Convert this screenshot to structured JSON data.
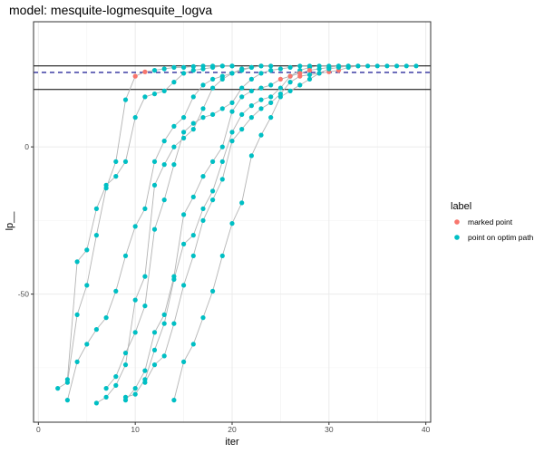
{
  "chart_data": {
    "type": "scatter",
    "title": "model: mesquite-logmesquite_logva",
    "xlabel": "iter",
    "ylabel": "lp__",
    "xlim": [
      -0.5,
      40.5
    ],
    "ylim": [
      -93.5,
      42.5
    ],
    "x_ticks": [
      0,
      10,
      20,
      30,
      40
    ],
    "y_ticks": [
      0,
      -50
    ],
    "grid": true,
    "hlines": [
      {
        "y": 27.5,
        "style": "solid",
        "color": "#000000"
      },
      {
        "y": 25.3,
        "style": "dashed",
        "color": "#00008b"
      },
      {
        "y": 19.5,
        "style": "solid",
        "color": "#000000"
      }
    ],
    "legend": {
      "title": "label",
      "position": "right",
      "entries": [
        {
          "label": "marked point",
          "color": "#F8766D"
        },
        {
          "label": "point on optim path",
          "color": "#00BFC4"
        }
      ]
    },
    "series": [
      {
        "points": [
          [
            2,
            -82
          ],
          [
            3,
            -80
          ],
          [
            4,
            -57
          ],
          [
            5,
            -47
          ],
          [
            6,
            -30
          ],
          [
            7,
            -14
          ],
          [
            8,
            -5
          ],
          [
            9,
            16
          ],
          [
            10,
            24
          ],
          [
            11,
            25.5
          ],
          [
            12,
            26
          ],
          [
            13,
            26.5
          ],
          [
            14,
            27
          ],
          [
            15,
            27
          ],
          [
            16,
            27.3
          ],
          [
            17,
            27.5
          ],
          [
            18,
            27.5
          ],
          [
            19,
            27.5
          ],
          [
            20,
            27.5
          ]
        ],
        "colors": [
          "c",
          "c",
          "c",
          "c",
          "c",
          "c",
          "c",
          "c",
          "m",
          "m",
          "c",
          "c",
          "c",
          "c",
          "c",
          "c",
          "c",
          "c",
          "c"
        ]
      },
      {
        "points": [
          [
            3,
            -86
          ],
          [
            4,
            -73
          ],
          [
            5,
            -67
          ],
          [
            6,
            -62
          ],
          [
            7,
            -58
          ],
          [
            8,
            -49
          ],
          [
            9,
            -37
          ],
          [
            10,
            -27
          ],
          [
            11,
            -21
          ],
          [
            12,
            -5
          ],
          [
            13,
            2
          ],
          [
            14,
            7
          ],
          [
            15,
            10
          ],
          [
            16,
            17
          ],
          [
            17,
            21
          ],
          [
            18,
            23
          ],
          [
            19,
            24
          ],
          [
            20,
            25
          ],
          [
            21,
            26
          ],
          [
            22,
            27
          ],
          [
            23,
            27.5
          ],
          [
            24,
            27.5
          ]
        ],
        "colors": [
          "c",
          "c",
          "c",
          "c",
          "c",
          "c",
          "c",
          "c",
          "c",
          "c",
          "c",
          "c",
          "c",
          "c",
          "c",
          "c",
          "c",
          "c",
          "c",
          "c",
          "c",
          "c"
        ]
      },
      {
        "points": [
          [
            3,
            -79
          ],
          [
            4,
            -39
          ],
          [
            5,
            -35
          ],
          [
            6,
            -21
          ],
          [
            7,
            -13
          ],
          [
            8,
            -10
          ],
          [
            9,
            -5
          ],
          [
            10,
            10
          ],
          [
            11,
            17
          ],
          [
            12,
            18
          ],
          [
            13,
            19
          ],
          [
            14,
            22
          ],
          [
            15,
            25
          ],
          [
            16,
            26
          ],
          [
            17,
            26.5
          ],
          [
            18,
            27
          ],
          [
            19,
            27.5
          ],
          [
            20,
            27.5
          ]
        ],
        "colors": [
          "c",
          "c",
          "c",
          "c",
          "c",
          "c",
          "c",
          "c",
          "c",
          "c",
          "c",
          "c",
          "c",
          "c",
          "c",
          "c",
          "c",
          "c"
        ]
      },
      {
        "points": [
          [
            6,
            -87
          ],
          [
            7,
            -85
          ],
          [
            8,
            -81
          ],
          [
            9,
            -74
          ],
          [
            10,
            -52
          ],
          [
            11,
            -44
          ],
          [
            12,
            -13
          ],
          [
            13,
            -6
          ],
          [
            14,
            0
          ],
          [
            15,
            3
          ],
          [
            16,
            6
          ],
          [
            17,
            13
          ],
          [
            18,
            20
          ],
          [
            19,
            23
          ],
          [
            20,
            25
          ],
          [
            21,
            26.5
          ],
          [
            22,
            27
          ],
          [
            23,
            27.5
          ]
        ],
        "colors": [
          "c",
          "c",
          "c",
          "c",
          "c",
          "c",
          "c",
          "c",
          "c",
          "c",
          "c",
          "c",
          "c",
          "c",
          "c",
          "c",
          "c",
          "c"
        ]
      },
      {
        "points": [
          [
            7,
            -82
          ],
          [
            8,
            -78
          ],
          [
            9,
            -70
          ],
          [
            10,
            -63
          ],
          [
            11,
            -54
          ],
          [
            12,
            -28
          ],
          [
            13,
            -18
          ],
          [
            14,
            -6
          ],
          [
            15,
            5
          ],
          [
            16,
            8
          ],
          [
            17,
            10
          ],
          [
            18,
            11
          ],
          [
            19,
            13
          ],
          [
            20,
            15
          ],
          [
            21,
            20
          ],
          [
            22,
            23
          ],
          [
            23,
            25
          ],
          [
            24,
            26
          ],
          [
            25,
            26.5
          ],
          [
            26,
            27
          ],
          [
            27,
            27.5
          ],
          [
            28,
            27.5
          ]
        ],
        "colors": [
          "c",
          "c",
          "c",
          "c",
          "c",
          "c",
          "c",
          "c",
          "c",
          "c",
          "c",
          "c",
          "c",
          "c",
          "c",
          "c",
          "c",
          "c",
          "c",
          "c",
          "c",
          "c"
        ]
      },
      {
        "points": [
          [
            9,
            -85
          ],
          [
            10,
            -84
          ],
          [
            11,
            -79
          ],
          [
            12,
            -69
          ],
          [
            13,
            -60
          ],
          [
            14,
            -45
          ],
          [
            15,
            -33
          ],
          [
            16,
            -30
          ],
          [
            17,
            -21
          ],
          [
            18,
            -15
          ],
          [
            19,
            -5
          ],
          [
            20,
            5
          ],
          [
            21,
            11
          ],
          [
            22,
            14
          ],
          [
            23,
            16
          ],
          [
            24,
            17
          ],
          [
            25,
            20
          ],
          [
            26,
            24
          ],
          [
            27,
            26
          ],
          [
            28,
            27
          ],
          [
            29,
            27.5
          ],
          [
            30,
            27.5
          ],
          [
            31,
            27.5
          ]
        ],
        "colors": [
          "c",
          "c",
          "c",
          "c",
          "c",
          "c",
          "c",
          "c",
          "c",
          "c",
          "c",
          "c",
          "c",
          "c",
          "c",
          "c",
          "c",
          "c",
          "c",
          "c",
          "c",
          "c",
          "c"
        ]
      },
      {
        "points": [
          [
            9,
            -86
          ],
          [
            10,
            -82
          ],
          [
            11,
            -76
          ],
          [
            12,
            -63
          ],
          [
            13,
            -57
          ],
          [
            14,
            -44
          ],
          [
            15,
            -23
          ],
          [
            16,
            -17
          ],
          [
            17,
            -10
          ],
          [
            18,
            -5
          ],
          [
            19,
            0
          ],
          [
            20,
            12
          ],
          [
            21,
            17
          ],
          [
            22,
            19
          ],
          [
            23,
            20
          ],
          [
            24,
            21
          ],
          [
            25,
            23
          ],
          [
            26,
            24
          ],
          [
            27,
            25
          ],
          [
            28,
            26
          ],
          [
            29,
            26.5
          ],
          [
            30,
            27
          ],
          [
            31,
            27.5
          ],
          [
            32,
            27.5
          ]
        ],
        "colors": [
          "c",
          "c",
          "c",
          "c",
          "c",
          "c",
          "c",
          "c",
          "c",
          "c",
          "c",
          "c",
          "c",
          "c",
          "c",
          "c",
          "m",
          "m",
          "m",
          "m",
          "c",
          "c",
          "c",
          "c"
        ]
      },
      {
        "points": [
          [
            11,
            -80
          ],
          [
            12,
            -74
          ],
          [
            13,
            -71
          ],
          [
            14,
            -60
          ],
          [
            15,
            -47
          ],
          [
            16,
            -37
          ],
          [
            17,
            -25
          ],
          [
            18,
            -18
          ],
          [
            19,
            -11
          ],
          [
            20,
            2
          ],
          [
            21,
            6
          ],
          [
            22,
            10
          ],
          [
            23,
            13
          ],
          [
            24,
            15
          ],
          [
            25,
            18
          ],
          [
            26,
            22
          ],
          [
            27,
            24
          ],
          [
            28,
            24.5
          ],
          [
            29,
            25
          ],
          [
            30,
            25.5
          ],
          [
            31,
            26
          ],
          [
            32,
            27
          ],
          [
            33,
            27.5
          ]
        ],
        "colors": [
          "c",
          "c",
          "c",
          "c",
          "c",
          "c",
          "c",
          "c",
          "c",
          "c",
          "c",
          "c",
          "c",
          "c",
          "c",
          "c",
          "m",
          "c",
          "m",
          "m",
          "m",
          "c",
          "c"
        ]
      },
      {
        "points": [
          [
            14,
            -86
          ],
          [
            15,
            -73
          ],
          [
            16,
            -67
          ],
          [
            17,
            -58
          ],
          [
            18,
            -49
          ],
          [
            19,
            -37
          ],
          [
            20,
            -26
          ],
          [
            21,
            -19
          ],
          [
            22,
            -3
          ],
          [
            23,
            4
          ],
          [
            24,
            10
          ],
          [
            25,
            17
          ],
          [
            26,
            19
          ],
          [
            27,
            21
          ],
          [
            28,
            23
          ],
          [
            29,
            25
          ],
          [
            30,
            26.5
          ],
          [
            31,
            27
          ],
          [
            32,
            27.5
          ],
          [
            33,
            27.5
          ],
          [
            34,
            27.5
          ],
          [
            35,
            27.5
          ],
          [
            36,
            27.5
          ],
          [
            37,
            27.5
          ],
          [
            38,
            27.5
          ],
          [
            39,
            27.5
          ]
        ],
        "colors": [
          "c",
          "c",
          "c",
          "c",
          "c",
          "c",
          "c",
          "c",
          "c",
          "c",
          "c",
          "c",
          "c",
          "c",
          "c",
          "c",
          "c",
          "c",
          "c",
          "c",
          "c",
          "c",
          "c",
          "c",
          "c",
          "c"
        ]
      }
    ]
  },
  "series_colors": {
    "m": "#F8766D",
    "c": "#00BFC4"
  }
}
